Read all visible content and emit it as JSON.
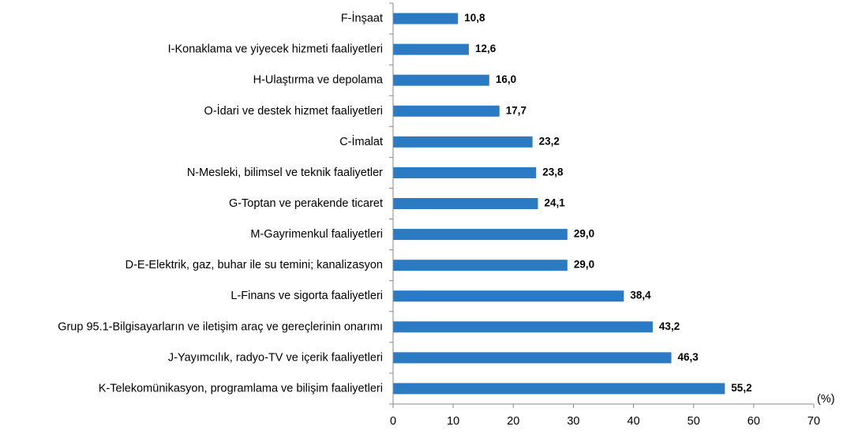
{
  "chart_data": {
    "type": "bar",
    "orientation": "horizontal",
    "categories": [
      "F-İnşaat",
      "I-Konaklama ve yiyecek hizmeti faaliyetleri",
      "H-Ulaştırma ve depolama",
      "O-İdari ve destek hizmet faaliyetleri",
      "C-İmalat",
      "N-Mesleki, bilimsel ve teknik faaliyetler",
      "G-Toptan ve perakende ticaret",
      "M-Gayrimenkul faaliyetleri",
      "D-E-Elektrik, gaz, buhar ile su temini; kanalizasyon",
      "L-Finans ve sigorta faaliyetleri",
      "Grup 95.1-Bilgisayarların ve iletişim araç ve gereçlerinin onarımı",
      "J-Yayımcılık, radyo-TV ve içerik faaliyetleri",
      "K-Telekomünikasyon, programlama ve bilişim faaliyetleri"
    ],
    "values": [
      10.8,
      12.6,
      16.0,
      17.7,
      23.2,
      23.8,
      24.1,
      29.0,
      29.0,
      38.4,
      43.2,
      46.3,
      55.2
    ],
    "value_labels": [
      "10,8",
      "12,6",
      "16,0",
      "17,7",
      "23,2",
      "23,8",
      "24,1",
      "29,0",
      "29,0",
      "38,4",
      "43,2",
      "46,3",
      "55,2"
    ],
    "xlim": [
      0,
      70
    ],
    "x_ticks": [
      "0",
      "10",
      "20",
      "30",
      "40",
      "50",
      "60",
      "70"
    ],
    "unit_label": "(%)",
    "title": "",
    "xlabel": "",
    "ylabel": "",
    "grid": false,
    "legend": "none",
    "bar_color": "#2B7BC4"
  }
}
